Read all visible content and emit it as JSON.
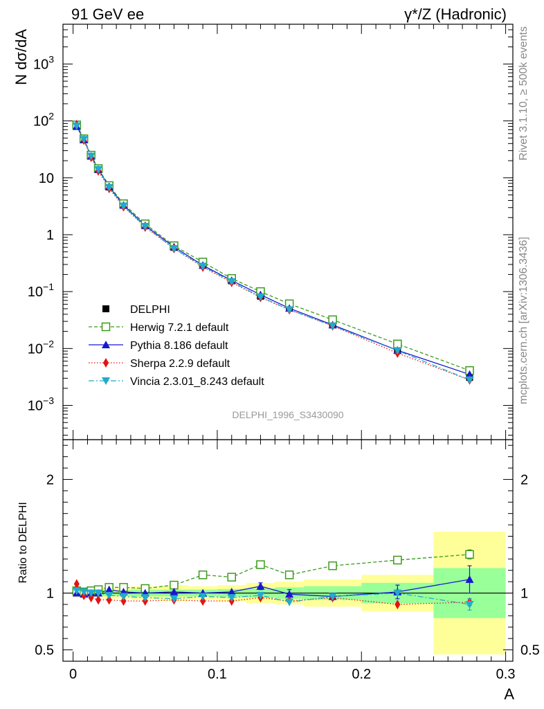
{
  "header": {
    "left_label": "91 GeV ee",
    "right_label": "γ*/Z (Hadronic)"
  },
  "side_labels": {
    "rivet": "Rivet 3.1.10, ≥ 500k events",
    "mcplots": "mcplots.cern.ch [arXiv:1306.3436]"
  },
  "analysis_tag": "DELPHI_1996_S3430090",
  "colors": {
    "data": "#000000",
    "herwig": "#3a9a1c",
    "pythia": "#1818d0",
    "sherpa": "#e81010",
    "vincia": "#22aacc",
    "band_inner": "#99ff99",
    "band_outer": "#ffff99"
  },
  "chart_data": [
    {
      "type": "line",
      "yscale": "log",
      "ylabel": "N dσ/dA",
      "xlabel": "",
      "xlim": [
        -0.007,
        0.305
      ],
      "ylim": [
        0.00025,
        5000
      ],
      "y_tick_labels": [
        "10^-3",
        "10^-2",
        "10^-1",
        "1",
        "10",
        "10^2",
        "10^3"
      ],
      "data_series": {
        "name": "DELPHI",
        "x": [
          0.0025,
          0.0075,
          0.0125,
          0.0175,
          0.025,
          0.035,
          0.05,
          0.07,
          0.09,
          0.11,
          0.13,
          0.15,
          0.18,
          0.225,
          0.275
        ],
        "values": [
          80.0,
          47.0,
          24.0,
          14.0,
          6.9,
          3.3,
          1.45,
          0.6,
          0.29,
          0.155,
          0.083,
          0.052,
          0.026,
          0.0092,
          0.0031
        ]
      },
      "series": [
        {
          "name": "Herwig 7.2.1 default",
          "key": "herwig",
          "x": [
            0.0025,
            0.0075,
            0.0125,
            0.0175,
            0.025,
            0.035,
            0.05,
            0.07,
            0.09,
            0.11,
            0.13,
            0.15,
            0.18,
            0.225,
            0.275
          ],
          "values": [
            85.0,
            48.5,
            25.0,
            14.5,
            7.3,
            3.5,
            1.55,
            0.64,
            0.33,
            0.17,
            0.1,
            0.061,
            0.032,
            0.012,
            0.0041
          ]
        },
        {
          "name": "Pythia 8.186 default",
          "key": "pythia",
          "x": [
            0.0025,
            0.0075,
            0.0125,
            0.0175,
            0.025,
            0.035,
            0.05,
            0.07,
            0.09,
            0.11,
            0.13,
            0.15,
            0.18,
            0.225,
            0.275
          ],
          "values": [
            80.0,
            46.5,
            24.0,
            14.0,
            7.0,
            3.3,
            1.45,
            0.61,
            0.29,
            0.157,
            0.088,
            0.051,
            0.026,
            0.0093,
            0.0035
          ]
        },
        {
          "name": "Sherpa 2.2.9 default",
          "key": "sherpa",
          "x": [
            0.0025,
            0.0075,
            0.0125,
            0.0175,
            0.025,
            0.035,
            0.05,
            0.07,
            0.09,
            0.11,
            0.13,
            0.15,
            0.18,
            0.225,
            0.275
          ],
          "values": [
            86.0,
            46.0,
            23.0,
            13.2,
            6.5,
            3.1,
            1.36,
            0.57,
            0.27,
            0.145,
            0.079,
            0.048,
            0.025,
            0.0083,
            0.0028
          ]
        },
        {
          "name": "Vincia 2.3.01_8.243 default",
          "key": "vincia",
          "x": [
            0.0025,
            0.0075,
            0.0125,
            0.0175,
            0.025,
            0.035,
            0.05,
            0.07,
            0.09,
            0.11,
            0.13,
            0.15,
            0.18,
            0.225,
            0.275
          ],
          "values": [
            82.0,
            47.5,
            24.0,
            14.0,
            6.8,
            3.2,
            1.4,
            0.57,
            0.28,
            0.15,
            0.081,
            0.048,
            0.025,
            0.0092,
            0.0028
          ]
        }
      ],
      "legend": {
        "position": "lower-left",
        "entries": [
          "DELPHI",
          "Herwig 7.2.1 default",
          "Pythia 8.186 default",
          "Sherpa 2.2.9 default",
          "Vincia 2.3.01_8.243 default"
        ]
      }
    },
    {
      "type": "line",
      "ylabel": "Ratio to DELPHI",
      "xlabel": "A",
      "xlim": [
        -0.007,
        0.305
      ],
      "ylim": [
        0.4,
        2.35
      ],
      "x_ticks": [
        0,
        0.1,
        0.2,
        0.3
      ],
      "x_tick_labels": [
        "0",
        "0.1",
        "0.2",
        "0.3"
      ],
      "y_ticks": [
        0.5,
        1,
        2
      ],
      "y_tick_labels": [
        "0.5",
        "1",
        "2"
      ],
      "bins": [
        0,
        0.005,
        0.01,
        0.015,
        0.02,
        0.03,
        0.04,
        0.06,
        0.08,
        0.1,
        0.12,
        0.14,
        0.16,
        0.2,
        0.25,
        0.3
      ],
      "band_inner": [
        0.02,
        0.02,
        0.02,
        0.02,
        0.025,
        0.025,
        0.03,
        0.03,
        0.03,
        0.035,
        0.04,
        0.05,
        0.06,
        0.09,
        0.22
      ],
      "band_outer": [
        0.04,
        0.04,
        0.04,
        0.04,
        0.05,
        0.05,
        0.06,
        0.07,
        0.06,
        0.07,
        0.09,
        0.1,
        0.12,
        0.16,
        0.54
      ],
      "series": [
        {
          "key": "herwig",
          "x": [
            0.0025,
            0.0075,
            0.0125,
            0.0175,
            0.025,
            0.035,
            0.05,
            0.07,
            0.09,
            0.11,
            0.13,
            0.15,
            0.18,
            0.225,
            0.275
          ],
          "values": [
            1.02,
            1.01,
            1.02,
            1.03,
            1.05,
            1.05,
            1.04,
            1.07,
            1.16,
            1.14,
            1.25,
            1.16,
            1.24,
            1.29,
            1.34
          ],
          "errors": [
            0,
            0,
            0,
            0,
            0,
            0,
            0,
            0,
            0,
            0,
            0,
            0,
            0,
            0,
            0.04
          ]
        },
        {
          "key": "pythia",
          "x": [
            0.0025,
            0.0075,
            0.0125,
            0.0175,
            0.025,
            0.035,
            0.05,
            0.07,
            0.09,
            0.11,
            0.13,
            0.15,
            0.18,
            0.225,
            0.275
          ],
          "values": [
            1.0,
            0.99,
            1.0,
            1.0,
            1.03,
            1.01,
            1.0,
            1.01,
            1.0,
            1.01,
            1.06,
            0.99,
            0.97,
            1.01,
            1.12
          ],
          "errors": [
            0,
            0,
            0,
            0,
            0,
            0,
            0,
            0,
            0,
            0,
            0.03,
            0.04,
            0.03,
            0.06,
            0.12
          ]
        },
        {
          "key": "sherpa",
          "x": [
            0.0025,
            0.0075,
            0.0125,
            0.0175,
            0.025,
            0.035,
            0.05,
            0.07,
            0.09,
            0.11,
            0.13,
            0.15,
            0.18,
            0.225,
            0.275
          ],
          "values": [
            1.08,
            0.98,
            0.96,
            0.94,
            0.94,
            0.93,
            0.93,
            0.94,
            0.93,
            0.93,
            0.96,
            0.93,
            0.96,
            0.9,
            0.92
          ],
          "errors": [
            0,
            0,
            0,
            0,
            0,
            0,
            0,
            0,
            0,
            0,
            0,
            0,
            0,
            0,
            0.03
          ]
        },
        {
          "key": "vincia",
          "x": [
            0.0025,
            0.0075,
            0.0125,
            0.0175,
            0.025,
            0.035,
            0.05,
            0.07,
            0.09,
            0.11,
            0.13,
            0.15,
            0.18,
            0.225,
            0.275
          ],
          "values": [
            1.02,
            1.01,
            1.0,
            1.0,
            0.98,
            0.97,
            0.96,
            0.95,
            0.97,
            0.96,
            0.98,
            0.92,
            0.97,
            1.0,
            0.9
          ],
          "errors": [
            0,
            0,
            0,
            0,
            0,
            0,
            0,
            0,
            0,
            0,
            0,
            0,
            0,
            0,
            0.05
          ]
        }
      ]
    }
  ]
}
